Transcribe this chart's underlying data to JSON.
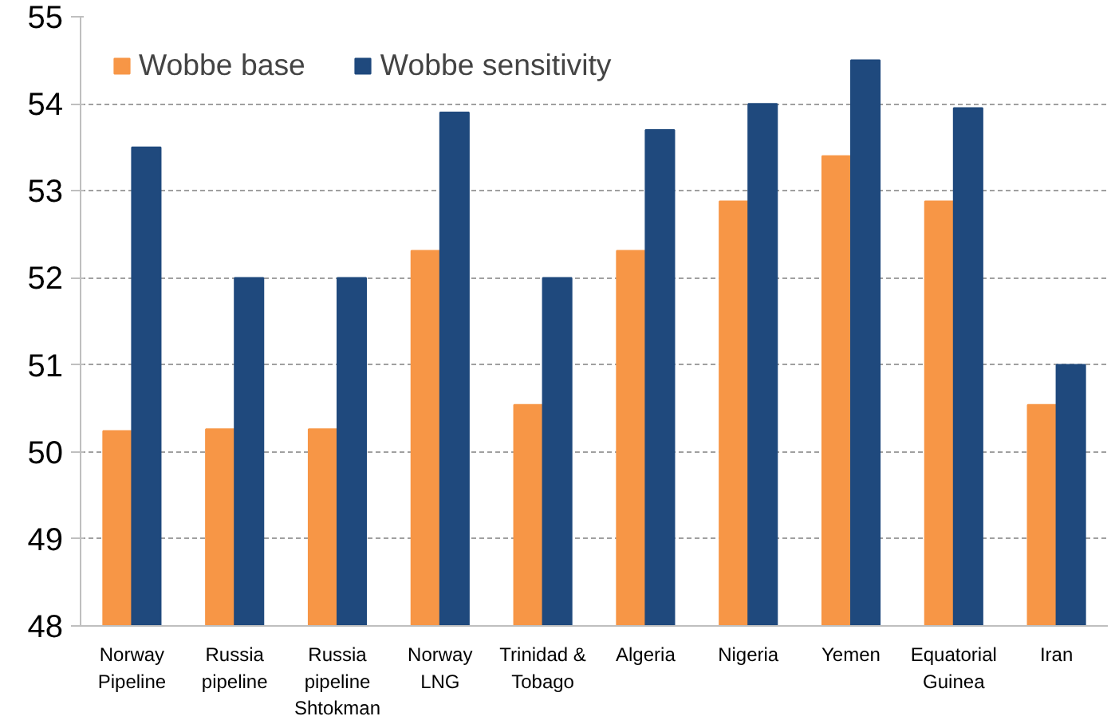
{
  "chart_data": {
    "type": "bar",
    "categories": [
      "Norway\nPipeline",
      "Russia\npipeline",
      "Russia\npipeline\nShtokman",
      "Norway\nLNG",
      "Trinidad &\nTobago",
      "Algeria",
      "Nigeria",
      "Yemen",
      "Equatorial\nGuinea",
      "Iran"
    ],
    "series": [
      {
        "name": "Wobbe base",
        "color": "#f79646",
        "values": [
          50.24,
          50.26,
          50.26,
          52.31,
          50.54,
          52.31,
          52.88,
          53.4,
          52.88,
          50.54
        ]
      },
      {
        "name": "Wobbe sensitivity",
        "color": "#1f497d",
        "values": [
          53.5,
          52.0,
          52.0,
          53.9,
          52.0,
          53.7,
          54.0,
          54.5,
          53.95,
          51.0
        ]
      }
    ],
    "ylim": [
      48,
      55
    ],
    "yticks": [
      48,
      49,
      50,
      51,
      52,
      53,
      54,
      55
    ],
    "grid": "y",
    "legend": "top left"
  }
}
